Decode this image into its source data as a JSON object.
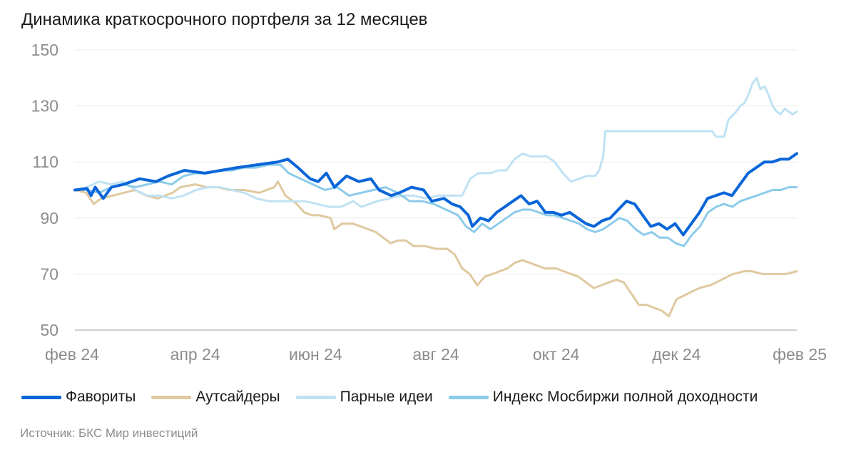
{
  "chart_data": {
    "type": "line",
    "title": "Динамика краткосрочного портфеля за 12 месяцев",
    "xlabel": "",
    "ylabel": "",
    "ylim": [
      50,
      150
    ],
    "yticks": [
      50,
      70,
      90,
      110,
      130,
      150
    ],
    "xticks": [
      "фев 24",
      "апр 24",
      "июн 24",
      "авг 24",
      "окт 24",
      "дек 24",
      "фев 25"
    ],
    "x_range_months": [
      0,
      12
    ],
    "grid": true,
    "legend_position": "bottom",
    "series": [
      {
        "name": "Фавориты",
        "color": "#0a66d8",
        "line_width": 4,
        "points": [
          [
            0,
            100
          ],
          [
            0.3,
            100.5
          ],
          [
            0.4,
            98
          ],
          [
            0.5,
            101
          ],
          [
            0.7,
            97
          ],
          [
            0.9,
            101
          ],
          [
            1.2,
            102
          ],
          [
            1.6,
            104
          ],
          [
            2,
            103
          ],
          [
            2.3,
            105
          ],
          [
            2.7,
            107
          ],
          [
            3.2,
            106
          ],
          [
            3.6,
            107
          ],
          [
            4,
            108
          ],
          [
            4.5,
            109
          ],
          [
            5,
            110
          ],
          [
            5.25,
            111
          ],
          [
            5.5,
            108
          ],
          [
            5.8,
            104
          ],
          [
            6,
            103
          ],
          [
            6.2,
            106
          ],
          [
            6.4,
            101
          ],
          [
            6.7,
            105
          ],
          [
            7,
            103
          ],
          [
            7.3,
            104
          ],
          [
            7.5,
            100
          ],
          [
            7.8,
            98
          ],
          [
            8,
            99
          ],
          [
            8.3,
            101
          ],
          [
            8.6,
            100
          ],
          [
            8.8,
            96
          ],
          [
            9.1,
            97
          ],
          [
            9.3,
            95
          ],
          [
            9.5,
            94
          ],
          [
            9.7,
            91
          ],
          [
            9.8,
            87
          ],
          [
            10,
            90
          ],
          [
            10.2,
            89
          ],
          [
            10.4,
            92
          ],
          [
            10.6,
            94
          ],
          [
            10.8,
            96
          ],
          [
            11,
            98
          ],
          [
            11.2,
            95
          ],
          [
            11.4,
            96
          ],
          [
            11.6,
            92
          ],
          [
            11.8,
            92
          ],
          [
            12,
            91
          ],
          [
            12.2,
            92
          ],
          [
            12.4,
            90
          ],
          [
            12.6,
            88
          ],
          [
            12.8,
            87
          ],
          [
            13,
            89
          ],
          [
            13.2,
            90
          ],
          [
            13.4,
            93
          ],
          [
            13.6,
            96
          ],
          [
            13.8,
            95
          ],
          [
            14,
            91
          ],
          [
            14.2,
            87
          ],
          [
            14.4,
            88
          ],
          [
            14.6,
            86
          ],
          [
            14.8,
            88
          ],
          [
            15,
            84
          ],
          [
            15.2,
            88
          ],
          [
            15.4,
            92
          ],
          [
            15.6,
            97
          ],
          [
            15.8,
            98
          ],
          [
            16,
            99
          ],
          [
            16.2,
            98
          ],
          [
            16.4,
            102
          ],
          [
            16.6,
            106
          ],
          [
            16.8,
            108
          ],
          [
            17,
            110
          ],
          [
            17.2,
            110
          ],
          [
            17.4,
            111
          ],
          [
            17.6,
            111
          ],
          [
            17.8,
            113
          ]
        ]
      },
      {
        "name": "Аутсайдеры",
        "color": "#dfc9a0",
        "line_width": 3,
        "points": [
          [
            0,
            100
          ],
          [
            0.3,
            99
          ],
          [
            0.5,
            95
          ],
          [
            0.7,
            97
          ],
          [
            1,
            98
          ],
          [
            1.3,
            99
          ],
          [
            1.6,
            100
          ],
          [
            1.9,
            98
          ],
          [
            2.2,
            97
          ],
          [
            2.4,
            98
          ],
          [
            2.6,
            99
          ],
          [
            2.8,
            101
          ],
          [
            3.2,
            102
          ],
          [
            3.5,
            101
          ],
          [
            3.8,
            101
          ],
          [
            4.1,
            100
          ],
          [
            4.5,
            100
          ],
          [
            4.9,
            99
          ],
          [
            5.3,
            101
          ],
          [
            5.4,
            103
          ],
          [
            5.6,
            98
          ],
          [
            5.9,
            95
          ],
          [
            6.1,
            92
          ],
          [
            6.3,
            91
          ],
          [
            6.5,
            91
          ],
          [
            6.8,
            90
          ],
          [
            6.9,
            86
          ],
          [
            7.1,
            88
          ],
          [
            7.4,
            88
          ],
          [
            7.6,
            87
          ],
          [
            7.8,
            86
          ],
          [
            8,
            85
          ],
          [
            8.2,
            83
          ],
          [
            8.4,
            81
          ],
          [
            8.6,
            82
          ],
          [
            8.8,
            82
          ],
          [
            9,
            80
          ],
          [
            9.3,
            80
          ],
          [
            9.6,
            79
          ],
          [
            9.9,
            79
          ],
          [
            10.1,
            77
          ],
          [
            10.3,
            72
          ],
          [
            10.5,
            70
          ],
          [
            10.7,
            66
          ],
          [
            10.9,
            69
          ],
          [
            11.1,
            70
          ],
          [
            11.3,
            71
          ],
          [
            11.5,
            72
          ],
          [
            11.7,
            74
          ],
          [
            11.9,
            75
          ],
          [
            12.1,
            74
          ],
          [
            12.3,
            73
          ],
          [
            12.5,
            72
          ],
          [
            12.8,
            72
          ],
          [
            13,
            71
          ],
          [
            13.2,
            70
          ],
          [
            13.4,
            69
          ],
          [
            13.6,
            67
          ],
          [
            13.8,
            65
          ],
          [
            14,
            66
          ],
          [
            14.2,
            67
          ],
          [
            14.4,
            68
          ],
          [
            14.6,
            67
          ],
          [
            14.8,
            63
          ],
          [
            15,
            59
          ],
          [
            15.2,
            59
          ],
          [
            15.4,
            58
          ],
          [
            15.6,
            57
          ],
          [
            15.8,
            55
          ],
          [
            16,
            61
          ],
          [
            16.3,
            63
          ],
          [
            16.6,
            65
          ],
          [
            16.9,
            66
          ],
          [
            17.2,
            68
          ],
          [
            17.5,
            70
          ],
          [
            17.8,
            71
          ],
          [
            18,
            71
          ],
          [
            18.3,
            70
          ],
          [
            18.6,
            70
          ],
          [
            18.9,
            70
          ],
          [
            19.2,
            71
          ]
        ]
      },
      {
        "name": "Парные идеи",
        "color": "#bfe2f3",
        "line_width": 3,
        "points": [
          [
            0,
            100
          ],
          [
            0.3,
            101
          ],
          [
            0.6,
            103
          ],
          [
            0.9,
            102
          ],
          [
            1.2,
            103
          ],
          [
            1.5,
            100
          ],
          [
            1.8,
            98
          ],
          [
            2.1,
            98
          ],
          [
            2.4,
            97
          ],
          [
            2.7,
            98
          ],
          [
            3,
            100
          ],
          [
            3.3,
            101
          ],
          [
            3.6,
            101
          ],
          [
            3.9,
            100
          ],
          [
            4.2,
            99
          ],
          [
            4.5,
            97
          ],
          [
            4.8,
            96
          ],
          [
            5.1,
            96
          ],
          [
            5.4,
            96
          ],
          [
            5.7,
            96
          ],
          [
            6,
            95
          ],
          [
            6.3,
            94
          ],
          [
            6.6,
            94
          ],
          [
            6.9,
            96
          ],
          [
            7.1,
            94
          ],
          [
            7.3,
            95
          ],
          [
            7.5,
            96
          ],
          [
            7.8,
            97
          ],
          [
            8.1,
            98
          ],
          [
            8.4,
            98
          ],
          [
            8.7,
            97
          ],
          [
            9,
            98
          ],
          [
            9.3,
            98
          ],
          [
            9.6,
            98
          ],
          [
            9.8,
            104
          ],
          [
            10,
            106
          ],
          [
            10.3,
            106
          ],
          [
            10.5,
            107
          ],
          [
            10.7,
            107
          ],
          [
            10.9,
            111
          ],
          [
            11.1,
            113
          ],
          [
            11.3,
            112
          ],
          [
            11.5,
            112
          ],
          [
            11.7,
            112
          ],
          [
            11.9,
            110
          ],
          [
            12.1,
            106
          ],
          [
            12.3,
            103
          ],
          [
            12.5,
            104
          ],
          [
            12.7,
            105
          ],
          [
            12.9,
            105
          ],
          [
            13,
            107
          ],
          [
            13.1,
            112
          ],
          [
            13.15,
            121
          ],
          [
            13.5,
            121
          ],
          [
            14,
            121
          ],
          [
            14.5,
            121
          ],
          [
            15,
            121
          ],
          [
            15.5,
            121
          ],
          [
            15.8,
            121
          ],
          [
            15.9,
            119
          ],
          [
            16.1,
            119
          ],
          [
            16.2,
            125
          ],
          [
            16.4,
            128
          ],
          [
            16.5,
            130
          ],
          [
            16.6,
            131
          ],
          [
            16.7,
            134
          ],
          [
            16.8,
            138
          ],
          [
            16.9,
            140
          ],
          [
            17,
            136
          ],
          [
            17.1,
            137
          ],
          [
            17.2,
            134
          ],
          [
            17.3,
            130
          ],
          [
            17.4,
            128
          ],
          [
            17.5,
            127
          ],
          [
            17.6,
            129
          ],
          [
            17.7,
            128
          ],
          [
            17.8,
            127
          ],
          [
            17.9,
            128
          ]
        ]
      },
      {
        "name": "Индекс Мосбиржи полной доходности",
        "color": "#8ccbea",
        "line_width": 3,
        "points": [
          [
            0,
            100
          ],
          [
            0.3,
            100
          ],
          [
            0.6,
            99
          ],
          [
            0.9,
            101
          ],
          [
            1.2,
            102
          ],
          [
            1.5,
            101
          ],
          [
            1.8,
            102
          ],
          [
            2.1,
            103
          ],
          [
            2.4,
            102
          ],
          [
            2.7,
            105
          ],
          [
            3,
            106
          ],
          [
            3.3,
            106
          ],
          [
            3.6,
            107
          ],
          [
            3.9,
            107
          ],
          [
            4.2,
            108
          ],
          [
            4.5,
            108
          ],
          [
            4.8,
            109
          ],
          [
            5.1,
            109
          ],
          [
            5.3,
            106
          ],
          [
            5.6,
            104
          ],
          [
            5.9,
            102
          ],
          [
            6.2,
            100
          ],
          [
            6.5,
            101
          ],
          [
            6.8,
            98
          ],
          [
            7.1,
            99
          ],
          [
            7.4,
            100
          ],
          [
            7.7,
            101
          ],
          [
            8,
            99
          ],
          [
            8.3,
            96
          ],
          [
            8.6,
            96
          ],
          [
            8.9,
            95
          ],
          [
            9.2,
            93
          ],
          [
            9.5,
            91
          ],
          [
            9.7,
            87
          ],
          [
            9.9,
            85
          ],
          [
            10.1,
            88
          ],
          [
            10.3,
            86
          ],
          [
            10.5,
            88
          ],
          [
            10.7,
            90
          ],
          [
            10.9,
            92
          ],
          [
            11.1,
            93
          ],
          [
            11.3,
            93
          ],
          [
            11.5,
            92
          ],
          [
            11.7,
            91
          ],
          [
            11.9,
            91
          ],
          [
            12.1,
            90
          ],
          [
            12.3,
            89
          ],
          [
            12.5,
            88
          ],
          [
            12.7,
            86
          ],
          [
            12.9,
            85
          ],
          [
            13.1,
            86
          ],
          [
            13.3,
            88
          ],
          [
            13.5,
            90
          ],
          [
            13.7,
            89
          ],
          [
            13.9,
            86
          ],
          [
            14.1,
            84
          ],
          [
            14.3,
            85
          ],
          [
            14.5,
            83
          ],
          [
            14.7,
            83
          ],
          [
            14.9,
            81
          ],
          [
            15.1,
            80
          ],
          [
            15.3,
            84
          ],
          [
            15.5,
            87
          ],
          [
            15.7,
            92
          ],
          [
            15.9,
            94
          ],
          [
            16.1,
            95
          ],
          [
            16.3,
            94
          ],
          [
            16.5,
            96
          ],
          [
            16.7,
            97
          ],
          [
            16.9,
            98
          ],
          [
            17.1,
            99
          ],
          [
            17.3,
            100
          ],
          [
            17.5,
            100
          ],
          [
            17.7,
            101
          ],
          [
            17.9,
            101
          ]
        ]
      }
    ]
  },
  "source_text": "Источник: БКС Мир инвестиций"
}
